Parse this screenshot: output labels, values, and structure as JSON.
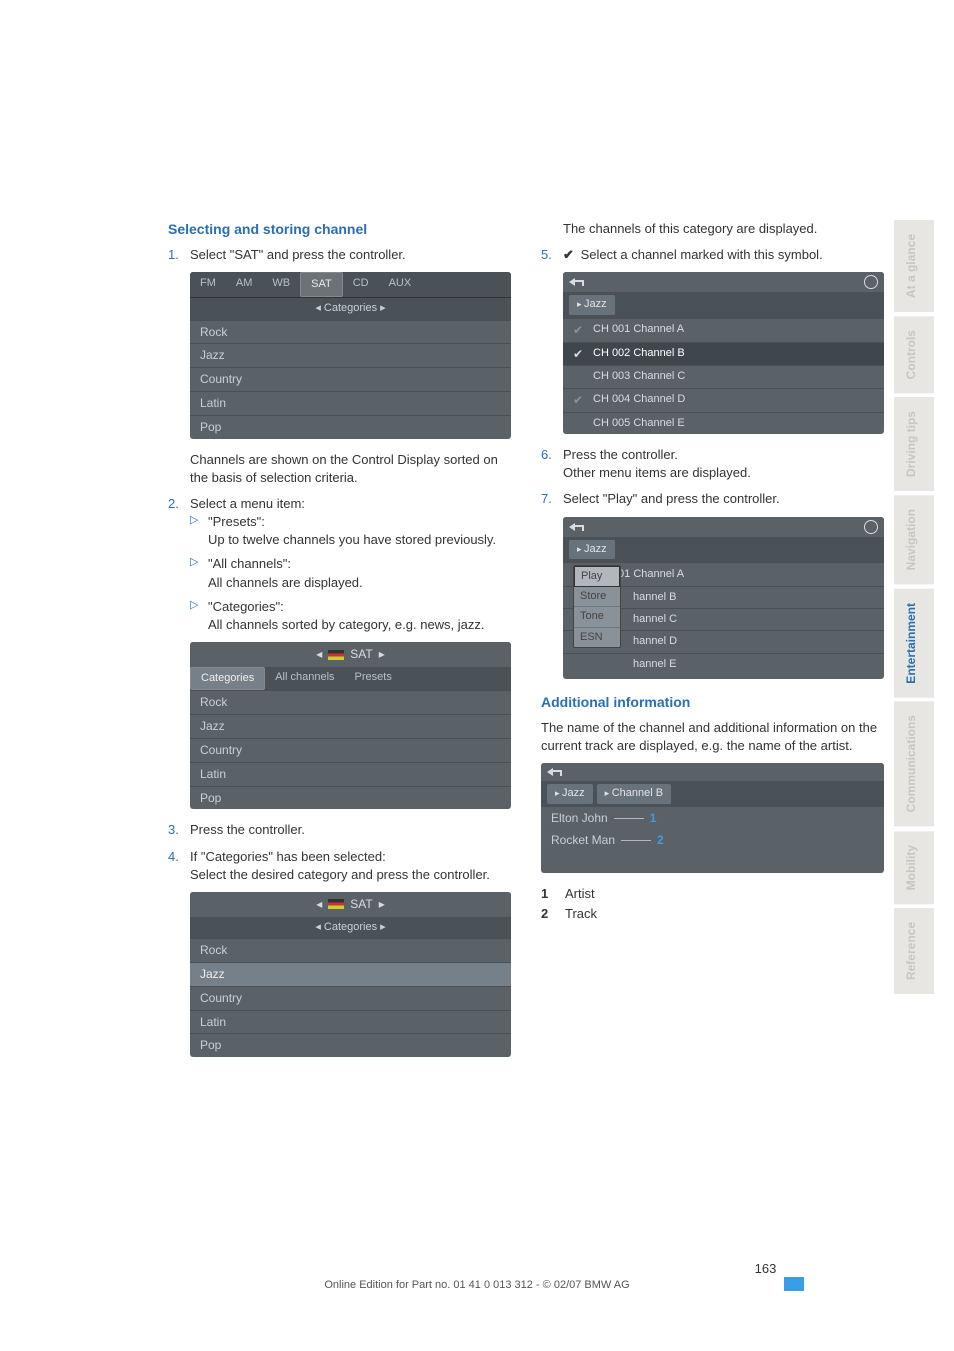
{
  "left": {
    "heading": "Selecting and storing channel",
    "step1": "Select \"SAT\" and press the controller.",
    "shot1": {
      "tabs": [
        "FM",
        "AM",
        "WB",
        "SAT",
        "CD",
        "AUX"
      ],
      "active_tab": 3,
      "subheader": "Categories",
      "rows": [
        "Rock",
        "Jazz",
        "Country",
        "Latin",
        "Pop"
      ]
    },
    "after1": "Channels are shown on the Control Display sorted on the basis of selection criteria.",
    "step2": "Select a menu item:",
    "sub": [
      {
        "q": "\"Presets\":",
        "d": "Up to twelve channels you have stored previously."
      },
      {
        "q": "\"All channels\":",
        "d": "All channels are displayed."
      },
      {
        "q": "\"Categories\":",
        "d": "All channels sorted by category, e.g. news, jazz."
      }
    ],
    "shot2": {
      "center_label": "SAT",
      "tabs": [
        "Categories",
        "All channels",
        "Presets"
      ],
      "active_tab": 0,
      "rows": [
        "Rock",
        "Jazz",
        "Country",
        "Latin",
        "Pop"
      ]
    },
    "step3": "Press the controller.",
    "step4a": "If \"Categories\" has been selected:",
    "step4b": "Select the desired category and press the controller.",
    "shot3": {
      "center_label": "SAT",
      "subheader": "Categories",
      "rows": [
        "Rock",
        "Jazz",
        "Country",
        "Latin",
        "Pop"
      ],
      "highlight": 1
    }
  },
  "right": {
    "intro": "The channels of this category are displayed.",
    "step5": "Select a channel marked with this symbol.",
    "shot4": {
      "crumb": "Jazz",
      "channels": [
        {
          "check": "dim",
          "label": "CH 001 Channel A"
        },
        {
          "check": "on",
          "label": "CH 002 Channel B",
          "sel": true
        },
        {
          "check": "",
          "label": "CH 003 Channel C"
        },
        {
          "check": "dim",
          "label": "CH 004 Channel D"
        },
        {
          "check": "",
          "label": "CH 005 Channel E"
        }
      ]
    },
    "step6a": "Press the controller.",
    "step6b": "Other menu items are displayed.",
    "step7": "Select \"Play\" and press the controller.",
    "shot5": {
      "crumb": "Jazz",
      "bg_rows": [
        "CH 001 Channel A",
        "hannel B",
        "hannel C",
        "hannel D",
        "hannel E"
      ],
      "popup": [
        "Play",
        "Store",
        "Tone",
        "ESN"
      ],
      "popup_sel": 0
    },
    "heading2": "Additional information",
    "para2": "The name of the channel and additional information on the current track are displayed, e.g. the name of the artist.",
    "shot6": {
      "crumbs": [
        "Jazz",
        "Channel B"
      ],
      "rows": [
        {
          "t": "Elton John",
          "n": "1"
        },
        {
          "t": "Rocket Man",
          "n": "2"
        }
      ]
    },
    "legend": [
      {
        "n": "1",
        "t": "Artist"
      },
      {
        "n": "2",
        "t": "Track"
      }
    ]
  },
  "sidenav": [
    {
      "label": "At a glance",
      "bg": "#e8e6e2",
      "color": "#c8c6c0"
    },
    {
      "label": "Controls",
      "bg": "#e8e6e2",
      "color": "#c8c6c0"
    },
    {
      "label": "Driving tips",
      "bg": "#e8e6e2",
      "color": "#c8c6c0"
    },
    {
      "label": "Navigation",
      "bg": "#e8e6e2",
      "color": "#c8c6c0"
    },
    {
      "label": "Entertainment",
      "bg": "#e8e6e2",
      "color": "#2a6fb5"
    },
    {
      "label": "Communications",
      "bg": "#e8e6e2",
      "color": "#c8c6c0"
    },
    {
      "label": "Mobility",
      "bg": "#e8e6e2",
      "color": "#c8c6c0"
    },
    {
      "label": "Reference",
      "bg": "#e8e6e2",
      "color": "#c8c6c0"
    }
  ],
  "footer": {
    "page": "163",
    "line": "Online Edition for Part no. 01 41 0 013 312 - © 02/07 BMW AG"
  }
}
